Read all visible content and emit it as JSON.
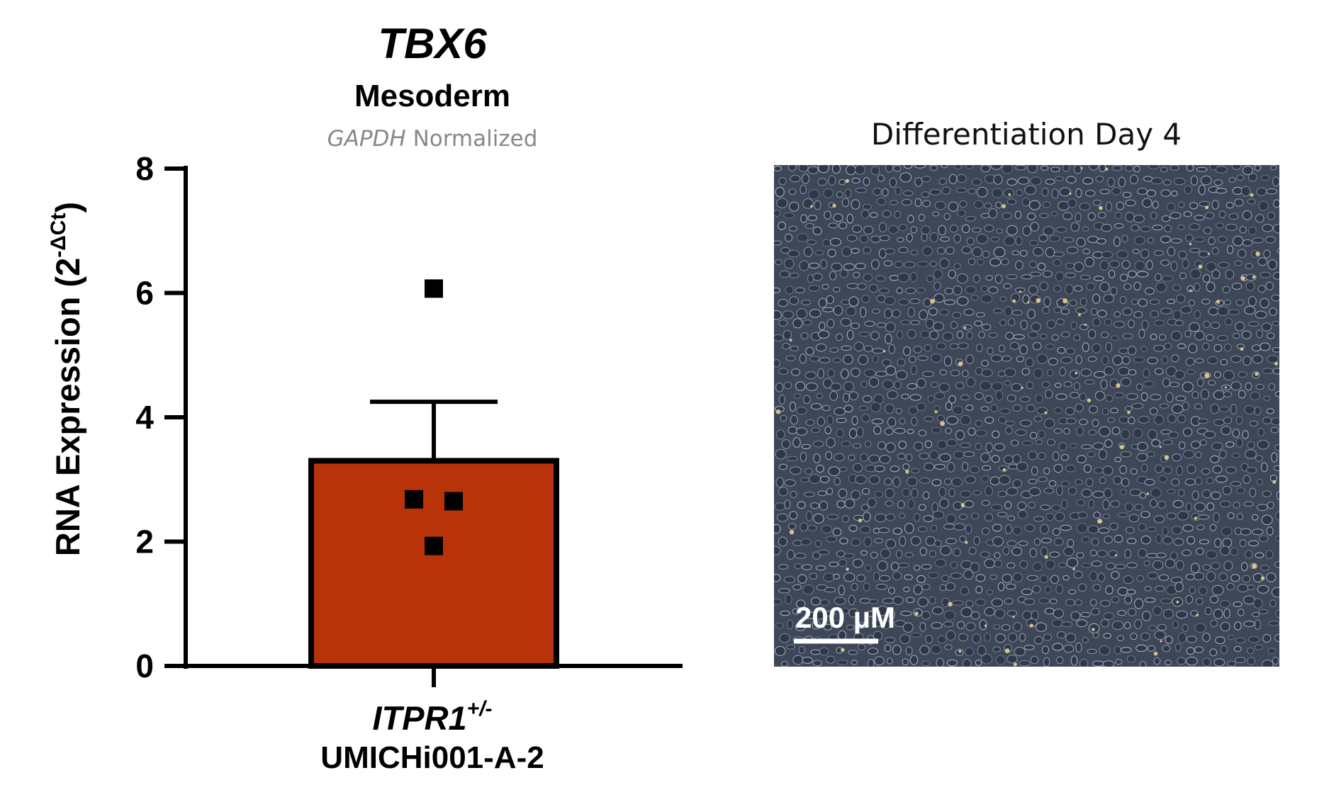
{
  "chart_data": {
    "type": "bar",
    "title": "TBX6",
    "subtitle": "Mesoderm",
    "normalization": {
      "gene": "GAPDH",
      "text": " Normalized"
    },
    "ylabel": {
      "main": "RNA Expression (2",
      "superscript": "-ΔCt",
      "close": ")"
    },
    "ylim": [
      0,
      8
    ],
    "yticks": [
      0,
      2,
      4,
      6,
      8
    ],
    "grid": false,
    "categories": [
      {
        "genotype": "ITPR1",
        "genotype_superscript": "+/-",
        "line": "UMICHi001-A-2"
      }
    ],
    "series": [
      {
        "values": [
          3.3
        ],
        "error": [
          0.95
        ],
        "points": [
          [
            6.07,
            2.68,
            2.65,
            1.93
          ]
        ],
        "color": "#B8330A",
        "marker": "square",
        "marker_color": "#000000"
      }
    ]
  },
  "micrograph": {
    "title": "Differentiation Day 4",
    "scale_bar_label": "200 µM",
    "colors": {
      "background": "#3D4758",
      "cell_edge": "#C8D2E0",
      "cell_body": "#2E3849",
      "debris": "#D8C38A"
    }
  }
}
